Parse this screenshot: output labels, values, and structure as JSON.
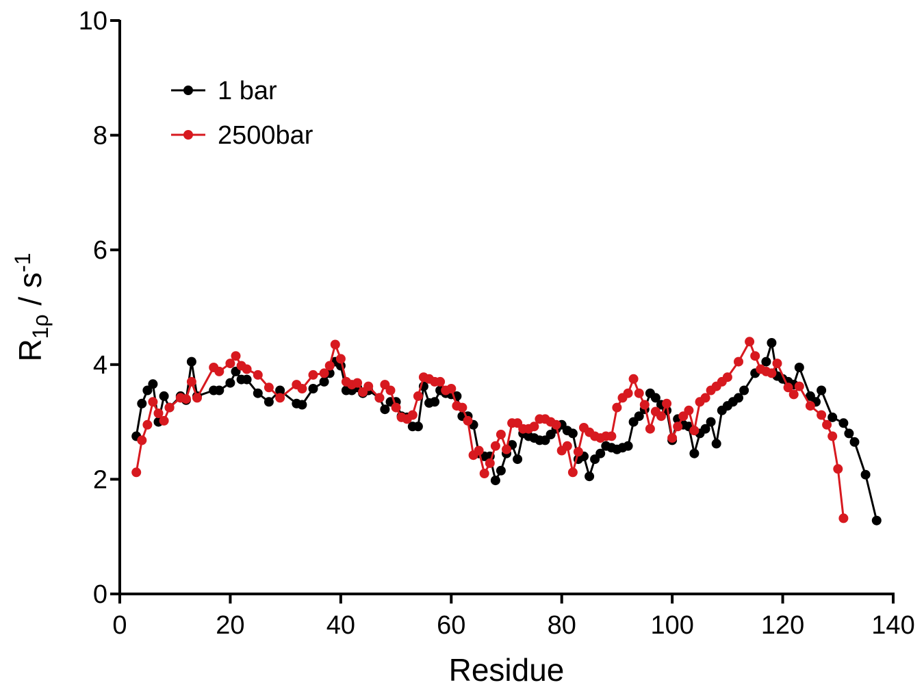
{
  "chart_data": {
    "type": "line",
    "xlabel": "Residue",
    "ylabel": {
      "main": "R",
      "sub": "1ρ",
      "unit": " / s",
      "sup": "-1"
    },
    "xlim": [
      0,
      140
    ],
    "ylim": [
      0,
      10
    ],
    "xticks": [
      "0",
      "20",
      "40",
      "60",
      "80",
      "100",
      "120",
      "140"
    ],
    "yticks": [
      "0",
      "2",
      "4",
      "6",
      "8",
      "10"
    ],
    "grid": false,
    "legend": "top-left",
    "series": [
      {
        "name": "1 bar",
        "color": "#000000",
        "points": [
          [
            3,
            2.75
          ],
          [
            4,
            3.32
          ],
          [
            5,
            3.55
          ],
          [
            6,
            3.66
          ],
          [
            7,
            3.0
          ],
          [
            8,
            3.45
          ],
          [
            9,
            3.25
          ],
          [
            11,
            3.45
          ],
          [
            12,
            3.38
          ],
          [
            13,
            4.05
          ],
          [
            14,
            3.45
          ],
          [
            17,
            3.55
          ],
          [
            18,
            3.55
          ],
          [
            20,
            3.68
          ],
          [
            21,
            3.88
          ],
          [
            22,
            3.74
          ],
          [
            23,
            3.74
          ],
          [
            25,
            3.5
          ],
          [
            27,
            3.35
          ],
          [
            29,
            3.55
          ],
          [
            32,
            3.32
          ],
          [
            33,
            3.3
          ],
          [
            35,
            3.58
          ],
          [
            37,
            3.7
          ],
          [
            38,
            3.85
          ],
          [
            39,
            4.05
          ],
          [
            40,
            3.98
          ],
          [
            41,
            3.55
          ],
          [
            42,
            3.55
          ],
          [
            43,
            3.6
          ],
          [
            44,
            3.5
          ],
          [
            45,
            3.55
          ],
          [
            47,
            3.42
          ],
          [
            48,
            3.22
          ],
          [
            49,
            3.35
          ],
          [
            50,
            3.35
          ],
          [
            51,
            3.1
          ],
          [
            52,
            3.08
          ],
          [
            53,
            2.92
          ],
          [
            54,
            2.92
          ],
          [
            55,
            3.62
          ],
          [
            56,
            3.33
          ],
          [
            57,
            3.35
          ],
          [
            58,
            3.55
          ],
          [
            59,
            3.5
          ],
          [
            60,
            3.48
          ],
          [
            61,
            3.45
          ],
          [
            62,
            3.1
          ],
          [
            63,
            3.1
          ],
          [
            64,
            2.95
          ],
          [
            65,
            2.45
          ],
          [
            66,
            2.4
          ],
          [
            67,
            2.4
          ],
          [
            68,
            1.98
          ],
          [
            69,
            2.15
          ],
          [
            70,
            2.45
          ],
          [
            71,
            2.6
          ],
          [
            72,
            2.35
          ],
          [
            73,
            2.8
          ],
          [
            74,
            2.75
          ],
          [
            75,
            2.72
          ],
          [
            76,
            2.68
          ],
          [
            77,
            2.68
          ],
          [
            78,
            2.78
          ],
          [
            79,
            2.88
          ],
          [
            80,
            2.95
          ],
          [
            81,
            2.85
          ],
          [
            82,
            2.8
          ],
          [
            83,
            2.35
          ],
          [
            84,
            2.4
          ],
          [
            85,
            2.05
          ],
          [
            86,
            2.35
          ],
          [
            87,
            2.45
          ],
          [
            88,
            2.58
          ],
          [
            89,
            2.55
          ],
          [
            90,
            2.52
          ],
          [
            91,
            2.55
          ],
          [
            92,
            2.58
          ],
          [
            93,
            3.0
          ],
          [
            94,
            3.1
          ],
          [
            95,
            3.22
          ],
          [
            96,
            3.5
          ],
          [
            97,
            3.42
          ],
          [
            98,
            3.3
          ],
          [
            99,
            3.2
          ],
          [
            100,
            2.68
          ],
          [
            101,
            3.05
          ],
          [
            102,
            2.95
          ],
          [
            103,
            2.92
          ],
          [
            104,
            2.45
          ],
          [
            105,
            2.8
          ],
          [
            106,
            2.88
          ],
          [
            107,
            3.0
          ],
          [
            108,
            2.62
          ],
          [
            109,
            3.2
          ],
          [
            110,
            3.28
          ],
          [
            111,
            3.35
          ],
          [
            112,
            3.42
          ],
          [
            113,
            3.55
          ],
          [
            115,
            3.85
          ],
          [
            117,
            4.05
          ],
          [
            118,
            4.38
          ],
          [
            119,
            3.8
          ],
          [
            120,
            3.75
          ],
          [
            121,
            3.7
          ],
          [
            122,
            3.65
          ],
          [
            123,
            3.95
          ],
          [
            125,
            3.45
          ],
          [
            126,
            3.35
          ],
          [
            127,
            3.55
          ],
          [
            129,
            3.08
          ],
          [
            131,
            2.98
          ],
          [
            132,
            2.8
          ],
          [
            133,
            2.65
          ],
          [
            135,
            2.08
          ],
          [
            137,
            1.28
          ]
        ]
      },
      {
        "name": "2500bar",
        "color": "#d7191f",
        "points": [
          [
            3,
            2.12
          ],
          [
            4,
            2.68
          ],
          [
            5,
            2.95
          ],
          [
            6,
            3.35
          ],
          [
            7,
            3.15
          ],
          [
            8,
            3.02
          ],
          [
            9,
            3.25
          ],
          [
            11,
            3.42
          ],
          [
            12,
            3.4
          ],
          [
            13,
            3.7
          ],
          [
            14,
            3.42
          ],
          [
            17,
            3.95
          ],
          [
            18,
            3.88
          ],
          [
            20,
            4.02
          ],
          [
            21,
            4.15
          ],
          [
            22,
            3.98
          ],
          [
            23,
            3.92
          ],
          [
            25,
            3.82
          ],
          [
            27,
            3.6
          ],
          [
            29,
            3.42
          ],
          [
            32,
            3.65
          ],
          [
            33,
            3.58
          ],
          [
            35,
            3.82
          ],
          [
            37,
            3.85
          ],
          [
            38,
            3.98
          ],
          [
            39,
            4.35
          ],
          [
            40,
            4.1
          ],
          [
            41,
            3.7
          ],
          [
            42,
            3.65
          ],
          [
            43,
            3.68
          ],
          [
            44,
            3.52
          ],
          [
            45,
            3.62
          ],
          [
            47,
            3.42
          ],
          [
            48,
            3.65
          ],
          [
            49,
            3.55
          ],
          [
            50,
            3.25
          ],
          [
            51,
            3.08
          ],
          [
            52,
            3.05
          ],
          [
            53,
            3.12
          ],
          [
            54,
            3.45
          ],
          [
            55,
            3.78
          ],
          [
            56,
            3.75
          ],
          [
            57,
            3.7
          ],
          [
            58,
            3.7
          ],
          [
            59,
            3.55
          ],
          [
            60,
            3.58
          ],
          [
            61,
            3.28
          ],
          [
            62,
            3.25
          ],
          [
            63,
            3.02
          ],
          [
            64,
            2.42
          ],
          [
            65,
            2.5
          ],
          [
            66,
            2.1
          ],
          [
            67,
            2.28
          ],
          [
            68,
            2.58
          ],
          [
            69,
            2.78
          ],
          [
            70,
            2.52
          ],
          [
            71,
            2.98
          ],
          [
            72,
            2.98
          ],
          [
            73,
            2.88
          ],
          [
            74,
            2.88
          ],
          [
            75,
            2.92
          ],
          [
            76,
            3.05
          ],
          [
            77,
            3.05
          ],
          [
            78,
            3.0
          ],
          [
            79,
            2.95
          ],
          [
            80,
            2.5
          ],
          [
            81,
            2.58
          ],
          [
            82,
            2.12
          ],
          [
            83,
            2.48
          ],
          [
            84,
            2.9
          ],
          [
            85,
            2.82
          ],
          [
            86,
            2.75
          ],
          [
            87,
            2.72
          ],
          [
            88,
            2.75
          ],
          [
            89,
            2.75
          ],
          [
            90,
            3.25
          ],
          [
            91,
            3.42
          ],
          [
            92,
            3.5
          ],
          [
            93,
            3.75
          ],
          [
            94,
            3.5
          ],
          [
            95,
            3.3
          ],
          [
            96,
            2.88
          ],
          [
            97,
            3.18
          ],
          [
            98,
            3.1
          ],
          [
            99,
            3.32
          ],
          [
            100,
            2.72
          ],
          [
            101,
            2.92
          ],
          [
            102,
            3.1
          ],
          [
            103,
            3.2
          ],
          [
            104,
            2.85
          ],
          [
            105,
            3.35
          ],
          [
            106,
            3.42
          ],
          [
            107,
            3.55
          ],
          [
            108,
            3.62
          ],
          [
            109,
            3.7
          ],
          [
            110,
            3.78
          ],
          [
            112,
            4.05
          ],
          [
            114,
            4.4
          ],
          [
            115,
            4.15
          ],
          [
            116,
            3.92
          ],
          [
            117,
            3.88
          ],
          [
            118,
            3.85
          ],
          [
            119,
            4.02
          ],
          [
            121,
            3.6
          ],
          [
            122,
            3.48
          ],
          [
            123,
            3.62
          ],
          [
            125,
            3.28
          ],
          [
            127,
            3.12
          ],
          [
            128,
            2.95
          ],
          [
            129,
            2.75
          ],
          [
            130,
            2.18
          ],
          [
            131,
            1.32
          ]
        ]
      }
    ]
  }
}
